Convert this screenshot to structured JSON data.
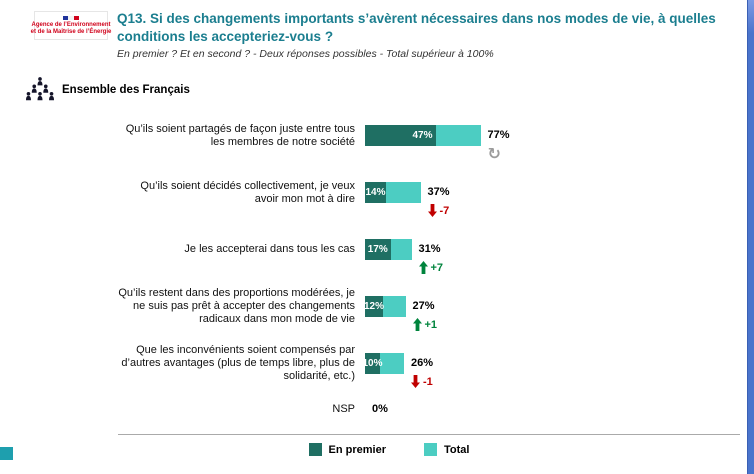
{
  "header": {
    "logo_line1": "Agence de l’Environnement",
    "logo_line2": "et de la Maîtrise de l’Énergie",
    "title": "Q13. Si des changements importants s’avèrent nécessaires dans nos modes de vie, à quelles conditions les accepteriez-vous ?",
    "subtitle": "En premier ? Et en second ? - Deux réponses possibles - Total supérieur à 100%"
  },
  "section_label": "Ensemble des Français",
  "colors": {
    "title": "#1B7E8F",
    "en_premier": "#1F6F63",
    "total": "#4CCDC2",
    "positive": "#00843D",
    "negative": "#C00000",
    "stable": "#9C9C9C",
    "accent_square": "#1E9FAE",
    "scrollbar": "#4A74CC",
    "logo_red": "#D0021B"
  },
  "chart_data": {
    "type": "bar",
    "orientation": "horizontal",
    "title": "Q13. Conditions d’acceptation de changements importants dans les modes de vie",
    "value_suffix": "%",
    "legend_position": "bottom",
    "categories": [
      "Qu’ils soient partagés de façon juste entre tous les membres de notre société",
      "Qu’ils soient décidés collectivement, je veux avoir mon mot à dire",
      "Je les accepterai dans tous les cas",
      "Qu’ils restent dans des proportions modérées, je ne suis pas prêt à accepter des changements radicaux dans mon mode de vie",
      "Que les inconvénients soient compensés par d’autres avantages (plus de temps libre, plus de solidarité, etc.)",
      "NSP"
    ],
    "series": [
      {
        "name": "En premier",
        "values": [
          47,
          14,
          17,
          12,
          10,
          null
        ]
      },
      {
        "name": "Total",
        "values": [
          77,
          37,
          31,
          27,
          26,
          0
        ]
      }
    ],
    "trends": [
      {
        "dir": "stable",
        "label": ""
      },
      {
        "dir": "down",
        "label": "-7"
      },
      {
        "dir": "up",
        "label": "+7"
      },
      {
        "dir": "up",
        "label": "+1"
      },
      {
        "dir": "down",
        "label": "-1"
      },
      null
    ]
  }
}
